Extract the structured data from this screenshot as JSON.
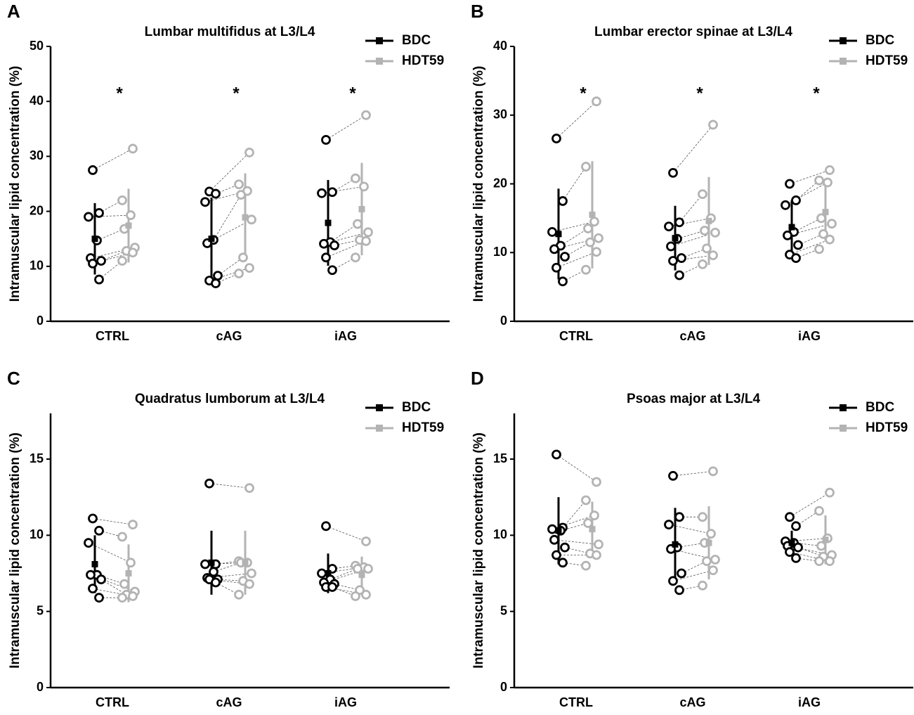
{
  "chart_data": [
    {
      "type": "paired-dot",
      "panel": "A",
      "title": "Lumbar multifidus at L3/L4",
      "y_label": "Intramuscular lipid concentration (%)",
      "categories": [
        "CTRL",
        "cAG",
        "iAG"
      ],
      "ylim": [
        0,
        50
      ],
      "yticks": [
        0,
        10,
        20,
        30,
        40,
        50
      ],
      "significance": [
        "*",
        "*",
        "*"
      ],
      "series": [
        {
          "name": "BDC",
          "color": "#000000",
          "values": [
            [
              27.5,
              19.7,
              19,
              14.7,
              11.5,
              11,
              10.5,
              7.6
            ],
            [
              23.6,
              23.2,
              21.7,
              14.8,
              14.2,
              8.3,
              7.4,
              6.9
            ],
            [
              33,
              23.5,
              23.3,
              14.4,
              14.1,
              13.8,
              11.6,
              9.3
            ]
          ],
          "mean": [
            15,
            15,
            17.9
          ],
          "sd": [
            6.5,
            7.5,
            7.8
          ]
        },
        {
          "name": "HDT59",
          "color": "#b3b3b3",
          "values": [
            [
              31.4,
              22,
              19.3,
              16.8,
              13.4,
              12.8,
              12.5,
              11
            ],
            [
              30.7,
              24.9,
              23.7,
              23,
              18.5,
              11.6,
              9.7,
              8.7
            ],
            [
              37.5,
              26,
              24.5,
              17.7,
              16.2,
              14.8,
              14.6,
              11.6
            ]
          ],
          "mean": [
            17.4,
            18.9,
            20.4
          ],
          "sd": [
            6.7,
            8,
            8.4
          ]
        }
      ]
    },
    {
      "type": "paired-dot",
      "panel": "B",
      "title": "Lumbar erector spinae at L3/L4",
      "y_label": "Intramuscular lipid concentration (%)",
      "categories": [
        "CTRL",
        "cAG",
        "iAG"
      ],
      "ylim": [
        0,
        40
      ],
      "yticks": [
        0,
        10,
        20,
        30,
        40
      ],
      "significance": [
        "*",
        "*",
        "*"
      ],
      "series": [
        {
          "name": "BDC",
          "color": "#000000",
          "values": [
            [
              26.6,
              17.5,
              13,
              11,
              10.5,
              9.4,
              7.8,
              5.8
            ],
            [
              21.6,
              14.4,
              13.8,
              12,
              10.9,
              9.2,
              8.8,
              6.7
            ],
            [
              20,
              17.6,
              16.9,
              13,
              12.5,
              11.1,
              9.7,
              9.2
            ]
          ],
          "mean": [
            12.7,
            12.1,
            13.7
          ],
          "sd": [
            6.6,
            4.7,
            3.9
          ]
        },
        {
          "name": "HDT59",
          "color": "#b3b3b3",
          "values": [
            [
              32,
              22.5,
              14.5,
              13.5,
              12.1,
              11.5,
              10.1,
              7.5
            ],
            [
              28.6,
              18.5,
              15,
              13.2,
              12.9,
              10.6,
              9.6,
              8.3
            ],
            [
              22,
              20.5,
              20.2,
              15,
              14.2,
              12.7,
              11.9,
              10.5
            ]
          ],
          "mean": [
            15.5,
            14.6,
            15.9
          ],
          "sd": [
            7.8,
            6.4,
            4.2
          ]
        }
      ]
    },
    {
      "type": "paired-dot",
      "panel": "C",
      "title": "Quadratus lumborum at L3/L4",
      "y_label": "Intramuscular lipid concentration (%)",
      "categories": [
        "CTRL",
        "cAG",
        "iAG"
      ],
      "ylim": [
        0,
        18
      ],
      "yticks": [
        0,
        5,
        10,
        15
      ],
      "series": [
        {
          "name": "BDC",
          "color": "#000000",
          "values": [
            [
              11.1,
              10.3,
              9.5,
              7.4,
              7.4,
              7.1,
              6.5,
              5.9
            ],
            [
              13.4,
              8.1,
              8.1,
              7.6,
              7.2,
              7.1,
              7.1,
              6.9
            ],
            [
              10.6,
              7.8,
              7.5,
              7.1,
              6.9,
              6.8,
              6.6,
              6.6
            ]
          ],
          "mean": [
            8.1,
            8.2,
            7.5
          ],
          "sd": [
            1.9,
            2.1,
            1.3
          ]
        },
        {
          "name": "HDT59",
          "color": "#b3b3b3",
          "values": [
            [
              10.7,
              9.9,
              8.2,
              6.8,
              6.3,
              6.1,
              6,
              5.9
            ],
            [
              13.1,
              8.3,
              8.2,
              8.2,
              7.5,
              7,
              6.8,
              6.1
            ],
            [
              9.6,
              8,
              7.9,
              7.8,
              7.8,
              6.4,
              6.1,
              6
            ]
          ],
          "mean": [
            7.5,
            8.2,
            7.4
          ],
          "sd": [
            1.9,
            2.1,
            1.2
          ]
        }
      ]
    },
    {
      "type": "paired-dot",
      "panel": "D",
      "title": "Psoas major at L3/L4",
      "y_label": "Intramuscular lipid concentration (%)",
      "categories": [
        "CTRL",
        "cAG",
        "iAG"
      ],
      "ylim": [
        0,
        18
      ],
      "yticks": [
        0,
        5,
        10,
        15
      ],
      "series": [
        {
          "name": "BDC",
          "color": "#000000",
          "values": [
            [
              15.3,
              10.5,
              10.4,
              10.3,
              9.7,
              9.2,
              8.7,
              8.2
            ],
            [
              13.9,
              11.2,
              10.7,
              9.2,
              9.1,
              7.5,
              7,
              6.4
            ],
            [
              11.2,
              10.6,
              9.6,
              9.5,
              9.3,
              9.2,
              8.9,
              8.5
            ]
          ],
          "mean": [
            10.3,
            9.4,
            9.5
          ],
          "sd": [
            2.2,
            2.4,
            0.8
          ]
        },
        {
          "name": "HDT59",
          "color": "#b3b3b3",
          "values": [
            [
              13.5,
              12.3,
              11.3,
              10.8,
              9.4,
              8.8,
              8.7,
              8
            ],
            [
              14.2,
              11.2,
              10.1,
              9.5,
              8.4,
              8.3,
              7.7,
              6.7
            ],
            [
              12.8,
              11.6,
              9.8,
              9.3,
              8.7,
              8.6,
              8.3,
              8.3
            ]
          ],
          "mean": [
            10.4,
            9.5,
            9.7
          ],
          "sd": [
            1.8,
            2.4,
            1.6
          ]
        }
      ]
    }
  ]
}
